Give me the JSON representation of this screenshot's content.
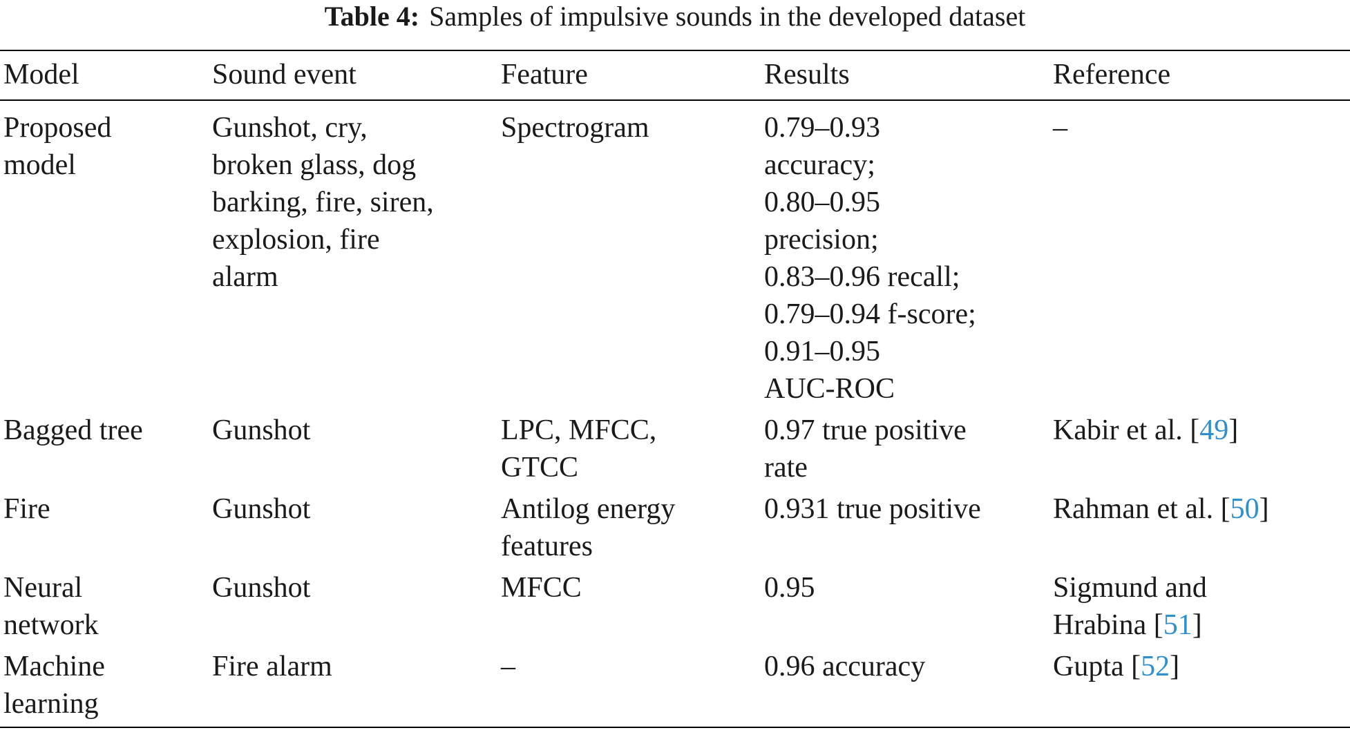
{
  "caption": {
    "label": "Table 4:",
    "text": "Samples of impulsive sounds in the developed dataset"
  },
  "table": {
    "headers": [
      "Model",
      "Sound event",
      "Feature",
      "Results",
      "Reference"
    ],
    "rows": [
      {
        "model": [
          "Proposed",
          "model"
        ],
        "sound_event": [
          "Gunshot, cry,",
          "broken glass, dog",
          "barking, fire, siren,",
          "explosion, fire",
          "alarm"
        ],
        "feature": [
          "Spectrogram"
        ],
        "results": [
          "0.79–0.93",
          "accuracy;",
          "0.80–0.95",
          "precision;",
          "0.83–0.96 recall;",
          "0.79–0.94 f-score;",
          "0.91–0.95",
          "AUC-ROC"
        ],
        "reference": {
          "text": "–",
          "num": ""
        }
      },
      {
        "model": [
          "Bagged tree"
        ],
        "sound_event": [
          "Gunshot"
        ],
        "feature": [
          "LPC, MFCC,",
          "GTCC"
        ],
        "results": [
          "0.97 true positive",
          "rate"
        ],
        "reference": {
          "text": "Kabir et al.  [",
          "num": "49",
          "close": "]"
        }
      },
      {
        "model": [
          "Fire"
        ],
        "sound_event": [
          "Gunshot"
        ],
        "feature": [
          "Antilog energy",
          "features"
        ],
        "results": [
          "0.931 true positive"
        ],
        "reference": {
          "text": "Rahman et al. [",
          "num": "50",
          "close": "]"
        }
      },
      {
        "model": [
          "Neural",
          "network"
        ],
        "sound_event": [
          "Gunshot"
        ],
        "feature": [
          "MFCC"
        ],
        "results": [
          "0.95"
        ],
        "reference": {
          "text": "Sigmund and",
          "text2": "Hrabina [",
          "num": "51",
          "close": "]"
        }
      },
      {
        "model": [
          "Machine",
          "learning"
        ],
        "sound_event": [
          "Fire alarm"
        ],
        "feature": [
          "–"
        ],
        "results": [
          "0.96 accuracy"
        ],
        "reference": {
          "text": "Gupta [",
          "num": "52",
          "close": "]"
        }
      }
    ]
  },
  "colors": {
    "link": "#2f8fcf",
    "text": "#1a1a1a",
    "rule": "#000000"
  }
}
